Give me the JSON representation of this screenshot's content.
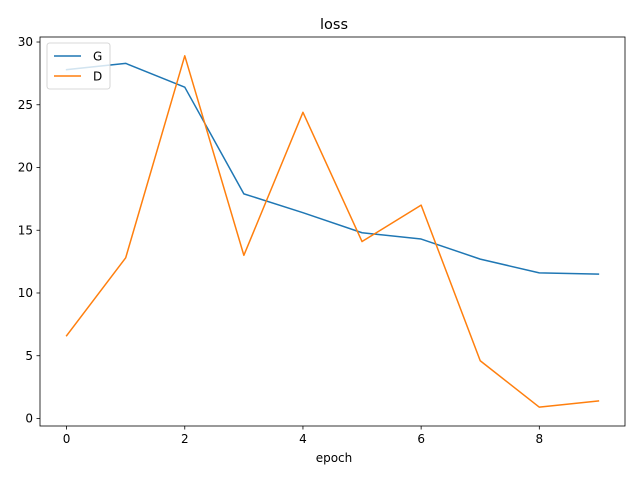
{
  "chart_data": {
    "type": "line",
    "title": "loss",
    "xlabel": "epoch",
    "ylabel": "",
    "x": [
      0,
      1,
      2,
      3,
      4,
      5,
      6,
      7,
      8,
      9
    ],
    "xlim": [
      -0.45,
      9.45
    ],
    "ylim": [
      -0.6,
      30.4
    ],
    "xticks": [
      0,
      2,
      4,
      6,
      8
    ],
    "yticks": [
      0,
      5,
      10,
      15,
      20,
      25,
      30
    ],
    "grid": false,
    "legend_position": "top-left",
    "series": [
      {
        "name": "G",
        "color": "#1f77b4",
        "values": [
          27.8,
          28.3,
          26.4,
          17.9,
          16.4,
          14.8,
          14.3,
          12.7,
          11.6,
          11.5
        ]
      },
      {
        "name": "D",
        "color": "#ff7f0e",
        "values": [
          6.6,
          12.8,
          28.9,
          13.0,
          24.4,
          14.1,
          17.0,
          4.6,
          0.9,
          1.4
        ]
      }
    ]
  }
}
